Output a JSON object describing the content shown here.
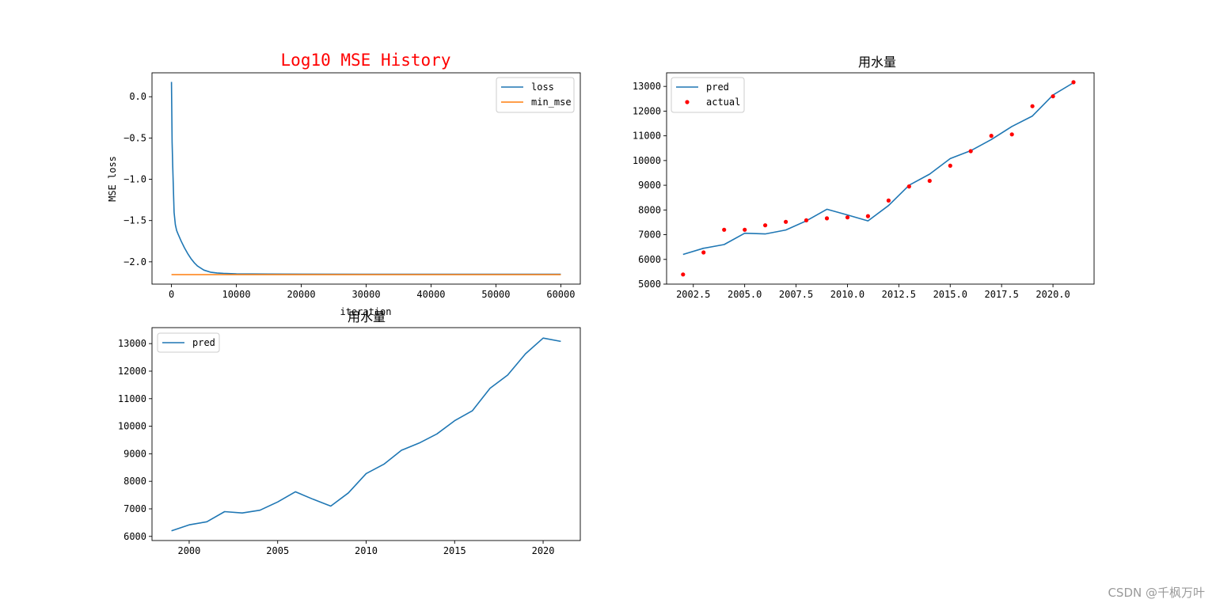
{
  "chart_data": [
    {
      "type": "line",
      "title": "Log10 MSE History",
      "xlabel": "iteration",
      "ylabel": "MSE loss",
      "xlim": [
        -3000,
        63000
      ],
      "ylim": [
        -2.27,
        0.29
      ],
      "xticks": [
        0,
        10000,
        20000,
        30000,
        40000,
        50000,
        60000
      ],
      "xtick_labels": [
        "0",
        "10000",
        "20000",
        "30000",
        "40000",
        "50000",
        "60000"
      ],
      "yticks": [
        0.0,
        -0.5,
        -1.0,
        -1.5,
        -2.0
      ],
      "ytick_labels": [
        "0.0",
        "−0.5",
        "−1.0",
        "−1.5",
        "−2.0"
      ],
      "legend_position": "upper right",
      "series": [
        {
          "name": "loss",
          "color": "#1f77b4",
          "x": [
            0,
            100,
            200,
            400,
            600,
            800,
            1000,
            1500,
            2000,
            2500,
            3000,
            3500,
            4000,
            5000,
            6000,
            7000,
            8000,
            10000,
            15000,
            20000,
            30000,
            40000,
            50000,
            60000
          ],
          "y": [
            0.18,
            -0.55,
            -0.85,
            -1.4,
            -1.55,
            -1.62,
            -1.66,
            -1.75,
            -1.83,
            -1.9,
            -1.96,
            -2.01,
            -2.05,
            -2.1,
            -2.125,
            -2.135,
            -2.14,
            -2.145,
            -2.148,
            -2.149,
            -2.15,
            -2.15,
            -2.15,
            -2.15
          ]
        },
        {
          "name": "min_mse",
          "color": "#ff7f0e",
          "x": [
            0,
            60000
          ],
          "y": [
            -2.155,
            -2.155
          ]
        }
      ]
    },
    {
      "type": "line",
      "title": "用水量",
      "xlim": [
        2001.2,
        2022.0
      ],
      "ylim": [
        5000,
        13550
      ],
      "xticks": [
        2002.5,
        2005.0,
        2007.5,
        2010.0,
        2012.5,
        2015.0,
        2017.5,
        2020.0
      ],
      "xtick_labels": [
        "2002.5",
        "2005.0",
        "2007.5",
        "2010.0",
        "2012.5",
        "2015.0",
        "2017.5",
        "2020.0"
      ],
      "yticks": [
        5000,
        6000,
        7000,
        8000,
        9000,
        10000,
        11000,
        12000,
        13000
      ],
      "ytick_labels": [
        "5000",
        "6000",
        "7000",
        "8000",
        "9000",
        "10000",
        "11000",
        "12000",
        "13000"
      ],
      "legend_position": "upper left",
      "series": [
        {
          "name": "pred",
          "style": "line",
          "color": "#1f77b4",
          "x": [
            2002,
            2003,
            2004,
            2005,
            2006,
            2007,
            2008,
            2009,
            2010,
            2011,
            2012,
            2013,
            2014,
            2015,
            2016,
            2017,
            2018,
            2019,
            2020,
            2021
          ],
          "y": [
            6200,
            6450,
            6600,
            7060,
            7030,
            7190,
            7560,
            8030,
            7800,
            7560,
            8180,
            9000,
            9450,
            10080,
            10400,
            10850,
            11380,
            11800,
            12650,
            13150
          ]
        },
        {
          "name": "actual",
          "style": "scatter",
          "color": "#ff0000",
          "x": [
            2002,
            2003,
            2004,
            2005,
            2006,
            2007,
            2008,
            2009,
            2010,
            2011,
            2012,
            2013,
            2014,
            2015,
            2016,
            2017,
            2018,
            2019,
            2020,
            2021
          ],
          "y": [
            5390,
            6280,
            7200,
            7200,
            7380,
            7520,
            7580,
            7660,
            7700,
            7750,
            8380,
            8950,
            9180,
            9790,
            10380,
            11000,
            11060,
            12200,
            12600,
            13170
          ]
        }
      ]
    },
    {
      "type": "line",
      "title": "用水量",
      "xlim": [
        1997.9,
        2022.1
      ],
      "ylim": [
        5850,
        13580
      ],
      "xticks": [
        2000,
        2005,
        2010,
        2015,
        2020
      ],
      "xtick_labels": [
        "2000",
        "2005",
        "2010",
        "2015",
        "2020"
      ],
      "yticks": [
        6000,
        7000,
        8000,
        9000,
        10000,
        11000,
        12000,
        13000
      ],
      "ytick_labels": [
        "6000",
        "7000",
        "8000",
        "9000",
        "10000",
        "11000",
        "12000",
        "13000"
      ],
      "legend_position": "upper left",
      "series": [
        {
          "name": "pred",
          "color": "#1f77b4",
          "x": [
            1999,
            2000,
            2001,
            2002,
            2003,
            2004,
            2005,
            2006,
            2007,
            2008,
            2009,
            2010,
            2011,
            2012,
            2013,
            2014,
            2015,
            2016,
            2017,
            2018,
            2019,
            2020,
            2021
          ],
          "y": [
            6200,
            6420,
            6530,
            6900,
            6850,
            6950,
            7250,
            7620,
            7350,
            7100,
            7580,
            8280,
            8620,
            9130,
            9390,
            9720,
            10200,
            10560,
            11380,
            11860,
            12630,
            13200,
            13080
          ]
        }
      ]
    }
  ],
  "watermark": "CSDN @千枫万叶"
}
